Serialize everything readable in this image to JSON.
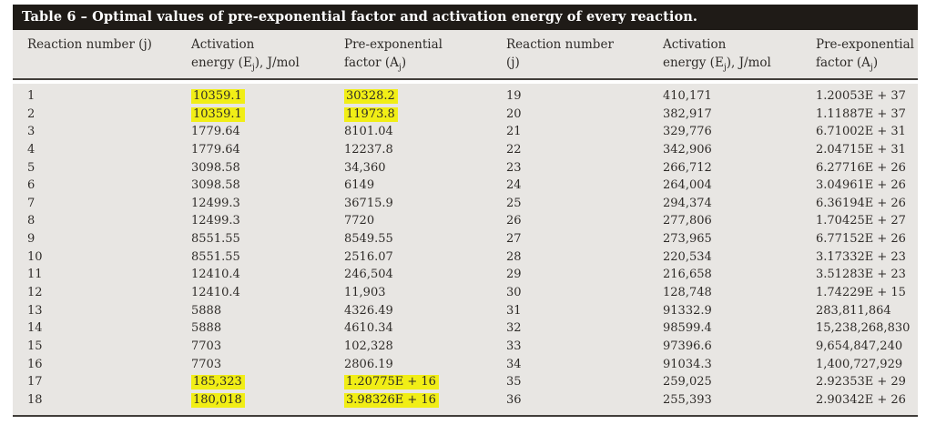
{
  "table": {
    "title": "Table 6 – Optimal values of pre-exponential factor and activation energy of every reaction.",
    "colors": {
      "title_bar_bg": "#1f1b17",
      "title_text": "#ffffff",
      "body_bg": "#e8e6e3",
      "highlight": "#f1ee16",
      "rule": "#413e3a",
      "text": "#2e2b28"
    },
    "headers": {
      "reaction_left": "Reaction number (j)",
      "reaction_right_line1": "Reaction number",
      "reaction_right_line2": "(j)",
      "activation_line1": "Activation",
      "activation_pre": "energy (E",
      "activation_post": "), J/mol",
      "preexp_line1": "Pre-exponential",
      "preexp_pre": "factor (A",
      "preexp_post": ")",
      "sub_j": "j"
    },
    "highlighted_reactions": [
      1,
      2,
      17,
      18
    ],
    "rows_left": [
      {
        "j": "1",
        "E": "10359.1",
        "A": "30328.2"
      },
      {
        "j": "2",
        "E": "10359.1",
        "A": "11973.8"
      },
      {
        "j": "3",
        "E": "1779.64",
        "A": "8101.04"
      },
      {
        "j": "4",
        "E": "1779.64",
        "A": "12237.8"
      },
      {
        "j": "5",
        "E": "3098.58",
        "A": "34,360"
      },
      {
        "j": "6",
        "E": "3098.58",
        "A": "6149"
      },
      {
        "j": "7",
        "E": "12499.3",
        "A": "36715.9"
      },
      {
        "j": "8",
        "E": "12499.3",
        "A": "7720"
      },
      {
        "j": "9",
        "E": "8551.55",
        "A": "8549.55"
      },
      {
        "j": "10",
        "E": "8551.55",
        "A": "2516.07"
      },
      {
        "j": "11",
        "E": "12410.4",
        "A": "246,504"
      },
      {
        "j": "12",
        "E": "12410.4",
        "A": "11,903"
      },
      {
        "j": "13",
        "E": "5888",
        "A": "4326.49"
      },
      {
        "j": "14",
        "E": "5888",
        "A": "4610.34"
      },
      {
        "j": "15",
        "E": "7703",
        "A": "102,328"
      },
      {
        "j": "16",
        "E": "7703",
        "A": "2806.19"
      },
      {
        "j": "17",
        "E": "185,323",
        "A": "1.20775E + 16"
      },
      {
        "j": "18",
        "E": "180,018",
        "A": "3.98326E + 16"
      }
    ],
    "rows_right": [
      {
        "j": "19",
        "E": "410,171",
        "A": "1.20053E + 37"
      },
      {
        "j": "20",
        "E": "382,917",
        "A": "1.11887E + 37"
      },
      {
        "j": "21",
        "E": "329,776",
        "A": "6.71002E + 31"
      },
      {
        "j": "22",
        "E": "342,906",
        "A": "2.04715E + 31"
      },
      {
        "j": "23",
        "E": "266,712",
        "A": "6.27716E + 26"
      },
      {
        "j": "24",
        "E": "264,004",
        "A": "3.04961E + 26"
      },
      {
        "j": "25",
        "E": "294,374",
        "A": "6.36194E + 26"
      },
      {
        "j": "26",
        "E": "277,806",
        "A": "1.70425E + 27"
      },
      {
        "j": "27",
        "E": "273,965",
        "A": "6.77152E + 26"
      },
      {
        "j": "28",
        "E": "220,534",
        "A": "3.17332E + 23"
      },
      {
        "j": "29",
        "E": "216,658",
        "A": "3.51283E + 23"
      },
      {
        "j": "30",
        "E": "128,748",
        "A": "1.74229E + 15"
      },
      {
        "j": "31",
        "E": "91332.9",
        "A": "283,811,864"
      },
      {
        "j": "32",
        "E": "98599.4",
        "A": "15,238,268,830"
      },
      {
        "j": "33",
        "E": "97396.6",
        "A": "9,654,847,240"
      },
      {
        "j": "34",
        "E": "91034.3",
        "A": "1,400,727,929"
      },
      {
        "j": "35",
        "E": "259,025",
        "A": "2.92353E + 29"
      },
      {
        "j": "36",
        "E": "255,393",
        "A": "2.90342E + 26"
      }
    ]
  }
}
